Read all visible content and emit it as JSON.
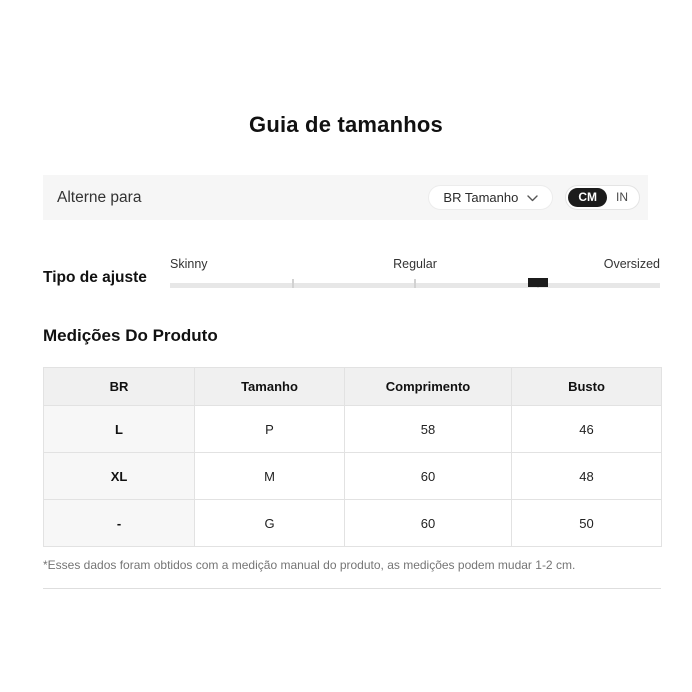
{
  "page": {
    "title": "Guia de tamanhos"
  },
  "colors": {
    "accent_black": "#1c1c1c",
    "bar_background": "#f6f6f6",
    "table_header_background": "#f0f0f0",
    "table_first_column_background": "#f7f7f7",
    "table_border": "#e2e2e2",
    "footnote_text": "#757575"
  },
  "toggle_bar": {
    "label": "Alterne para",
    "size_standard_dropdown": {
      "value": "BR Tamanho",
      "icon": "chevron-down"
    },
    "unit_toggle": {
      "options": [
        "CM",
        "IN"
      ],
      "selected": "CM"
    }
  },
  "fit_type": {
    "label": "Tipo de ajuste",
    "scale_labels": [
      "Skinny",
      "Regular",
      "Oversized"
    ],
    "tick_positions_pct": [
      25,
      50,
      75
    ],
    "marker_position_pct": 75
  },
  "product_measurements": {
    "heading": "Medições Do Produto",
    "table": {
      "headers": [
        "BR",
        "Tamanho",
        "Comprimento",
        "Busto"
      ],
      "rows": [
        [
          "L",
          "P",
          "58",
          "46"
        ],
        [
          "XL",
          "M",
          "60",
          "48"
        ],
        [
          "-",
          "G",
          "60",
          "50"
        ]
      ]
    },
    "footnote": "*Esses dados foram obtidos com a medição manual do produto, as medições podem mudar 1-2 cm."
  }
}
